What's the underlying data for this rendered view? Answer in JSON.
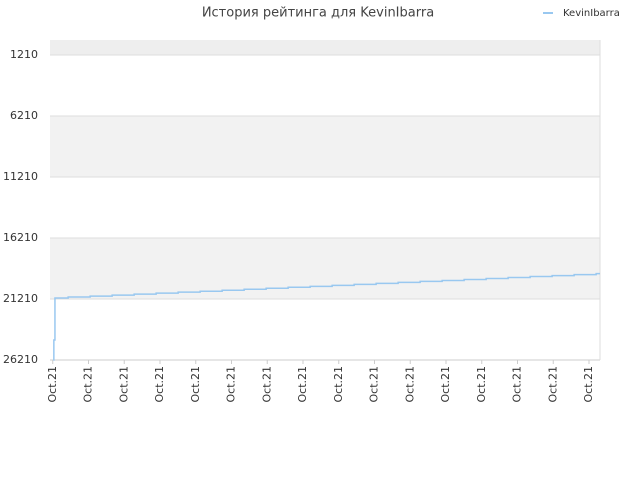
{
  "chart_data": {
    "type": "line",
    "title": "История рейтинга для KevinIbarra",
    "step": true,
    "inverted_y": true,
    "legend": "top-right",
    "grid": true,
    "x": [
      0.6,
      0.7,
      0.9,
      3.3,
      7.3,
      11.3,
      15.3,
      19.3,
      23.3,
      27.3,
      31.3,
      35.3,
      39.3,
      43.3,
      47.3,
      51.3,
      55.3,
      59.3,
      63.3,
      67.3,
      71.3,
      75.3,
      79.3,
      83.3,
      87.3,
      91.3,
      95.3,
      99.3
    ],
    "series": [
      {
        "name": "KevinIbarra",
        "color": "#99c8f0",
        "values": [
          26210,
          24570,
          21130,
          21050,
          20970,
          20890,
          20810,
          20730,
          20650,
          20570,
          20490,
          20410,
          20330,
          20250,
          20170,
          20090,
          20010,
          19930,
          19850,
          19770,
          19690,
          19610,
          19530,
          19450,
          19370,
          19290,
          19210,
          19130
        ]
      }
    ],
    "xlim": [
      0,
      100
    ],
    "xticks": [
      {
        "value": 0.5,
        "label": "Oct.21"
      },
      {
        "value": 7,
        "label": "Oct.21"
      },
      {
        "value": 13.5,
        "label": "Oct.21"
      },
      {
        "value": 20,
        "label": "Oct.21"
      },
      {
        "value": 26.5,
        "label": "Oct.21"
      },
      {
        "value": 33,
        "label": "Oct.21"
      },
      {
        "value": 39.5,
        "label": "Oct.21"
      },
      {
        "value": 46,
        "label": "Oct.21"
      },
      {
        "value": 52.5,
        "label": "Oct.21"
      },
      {
        "value": 59,
        "label": "Oct.21"
      },
      {
        "value": 65.5,
        "label": "Oct.21"
      },
      {
        "value": 72,
        "label": "Oct.21"
      },
      {
        "value": 78.5,
        "label": "Oct.21"
      },
      {
        "value": 85,
        "label": "Oct.21"
      },
      {
        "value": 91.5,
        "label": "Oct.21"
      },
      {
        "value": 98,
        "label": "Oct.21"
      }
    ],
    "ylim": [
      -20,
      26210
    ],
    "yticks": [
      1210,
      6210,
      11210,
      16210,
      21210,
      26210
    ]
  }
}
